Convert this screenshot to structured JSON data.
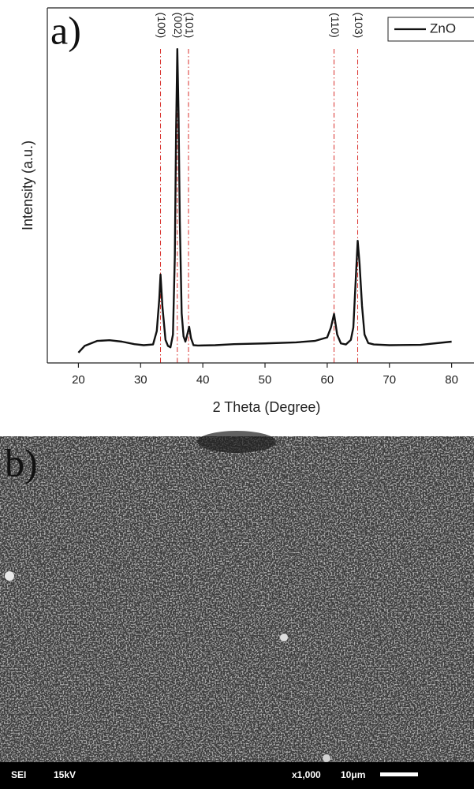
{
  "chart_data": {
    "type": "line",
    "panel_label": "a)",
    "x_label": "2 Theta (Degree)",
    "y_label": "Intensity (a.u.)",
    "x": [
      20,
      21,
      23,
      25,
      27,
      29,
      30.5,
      32,
      32.6,
      33,
      33.2,
      33.5,
      34,
      34.4,
      34.8,
      35.2,
      35.5,
      35.7,
      35.9,
      36.1,
      36.3,
      36.6,
      36.9,
      37.2,
      37.5,
      37.8,
      38.1,
      38.5,
      39.2,
      42,
      45,
      50,
      55,
      58,
      60,
      60.6,
      61.1,
      61.6,
      62.2,
      63,
      63.8,
      64.2,
      64.6,
      64.9,
      65.2,
      65.6,
      66,
      66.6,
      67.5,
      70,
      75,
      80
    ],
    "series": [
      {
        "name": "ZnO",
        "color": "#111111",
        "values": [
          2.9,
          4.8,
          6.2,
          6.4,
          6,
          5.3,
          5,
          5.2,
          9,
          18,
          24.9,
          16,
          6.5,
          4.8,
          4.4,
          8,
          30,
          65,
          88.4,
          70,
          40,
          14,
          7.5,
          6,
          8,
          10.2,
          7,
          5,
          4.9,
          5,
          5.3,
          5.5,
          5.8,
          6.2,
          7.2,
          10,
          13.8,
          8,
          5.5,
          5.2,
          6.5,
          10,
          24,
          34.4,
          28,
          16,
          8,
          5.6,
          5.2,
          5,
          5.1,
          6
        ]
      }
    ],
    "peaks": [
      {
        "x": 33.2,
        "label": "(100)"
      },
      {
        "x": 35.9,
        "label": "(002)"
      },
      {
        "x": 37.7,
        "label": "(101)"
      },
      {
        "x": 61.1,
        "label": "(110)"
      },
      {
        "x": 64.9,
        "label": "(103)"
      }
    ],
    "peak_line_color": "#d9302c",
    "xlim": [
      15,
      83.6
    ],
    "ylim": [
      0,
      100
    ],
    "xticks": [
      20,
      30,
      40,
      50,
      60,
      70,
      80
    ],
    "legend": "upper right"
  },
  "image": {
    "panel_label": "b)",
    "info": [
      "SEI",
      "15kV",
      "x1,000",
      "10μm"
    ]
  }
}
